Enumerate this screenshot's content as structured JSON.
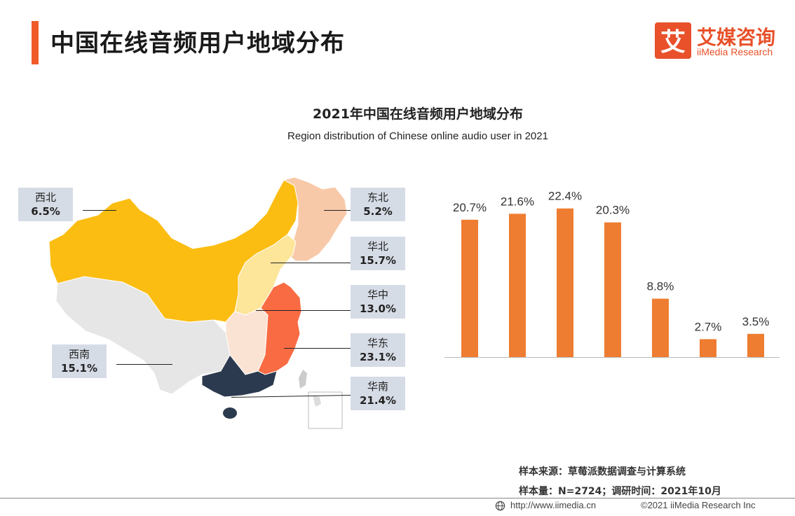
{
  "header": {
    "title": "中国在线音频用户地域分布"
  },
  "logo": {
    "cn": "艾媒咨询",
    "en": "iiMedia Research",
    "mark_char": "艾",
    "color": "#e8512a"
  },
  "colors": {
    "accent": "#f05a28",
    "bar": "#ee7d31",
    "northwest": "#fbbd12",
    "northeast": "#f8c9a8",
    "north": "#fde59a",
    "central": "#fbe3d4",
    "east": "#f96b43",
    "south": "#2c3a4f",
    "southwest": "#e6e6e6",
    "label_bg": "#d6dce6"
  },
  "regions": [
    {
      "name": "西北",
      "value": "6.5%"
    },
    {
      "name": "东北",
      "value": "5.2%"
    },
    {
      "name": "华北",
      "value": "15.7%"
    },
    {
      "name": "华中",
      "value": "13.0%"
    },
    {
      "name": "华东",
      "value": "23.1%"
    },
    {
      "name": "西南",
      "value": "15.1%"
    },
    {
      "name": "华南",
      "value": "21.4%"
    }
  ],
  "chart_data": {
    "type": "bar",
    "title": "2021年中国在线音频用户地域分布",
    "subtitle": "Region distribution of Chinese online audio user in 2021",
    "values": [
      20.7,
      21.6,
      22.4,
      20.3,
      8.8,
      2.7,
      3.5
    ],
    "value_labels": [
      "20.7%",
      "21.6%",
      "22.4%",
      "20.3%",
      "8.8%",
      "2.7%",
      "3.5%"
    ],
    "ylim": [
      0,
      25
    ],
    "grid": false
  },
  "footer": {
    "source": "样本来源：草莓派数据调查与计算系统",
    "sample": "样本量：N=2724；调研时间：2021年10月",
    "url": "http://www.iimedia.cn",
    "copyright": "©2021  iiMedia Research  Inc"
  }
}
